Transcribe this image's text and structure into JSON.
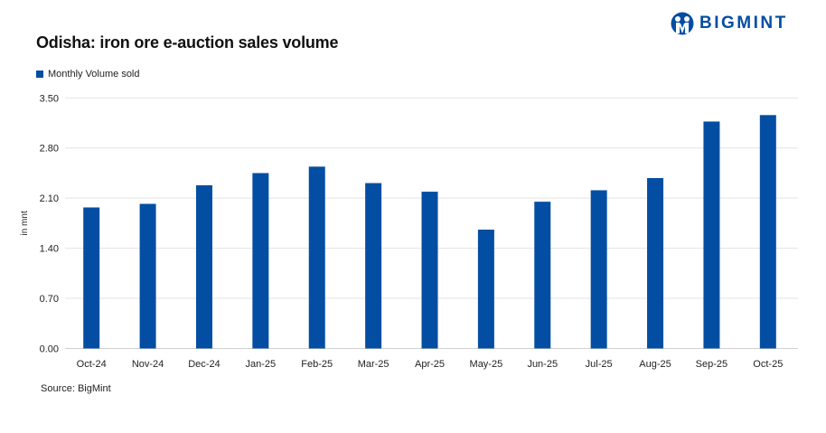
{
  "title": "Odisha: iron ore e-auction sales volume",
  "logo_text": "BIGMINT",
  "source": "Source: BigMint",
  "colors": {
    "bar": "#034ea2",
    "grid": "#e3e3e3"
  },
  "chart_data": {
    "type": "bar",
    "title": "Odisha: iron ore e-auction sales volume",
    "xlabel": "",
    "ylabel": "in mnt",
    "ylim": [
      0,
      3.5
    ],
    "yticks": [
      "0.00",
      "0.70",
      "1.40",
      "2.10",
      "2.80",
      "3.50"
    ],
    "grid": true,
    "legend_position": "top-left",
    "categories": [
      "Oct-24",
      "Nov-24",
      "Dec-24",
      "Jan-25",
      "Feb-25",
      "Mar-25",
      "Apr-25",
      "May-25",
      "Jun-25",
      "Jul-25",
      "Aug-25",
      "Sep-25",
      "Oct-25"
    ],
    "series": [
      {
        "name": "Monthly Volume sold",
        "values": [
          1.97,
          2.02,
          2.28,
          2.45,
          2.54,
          2.31,
          2.19,
          1.66,
          2.05,
          2.21,
          2.38,
          3.17,
          3.26
        ]
      }
    ]
  }
}
